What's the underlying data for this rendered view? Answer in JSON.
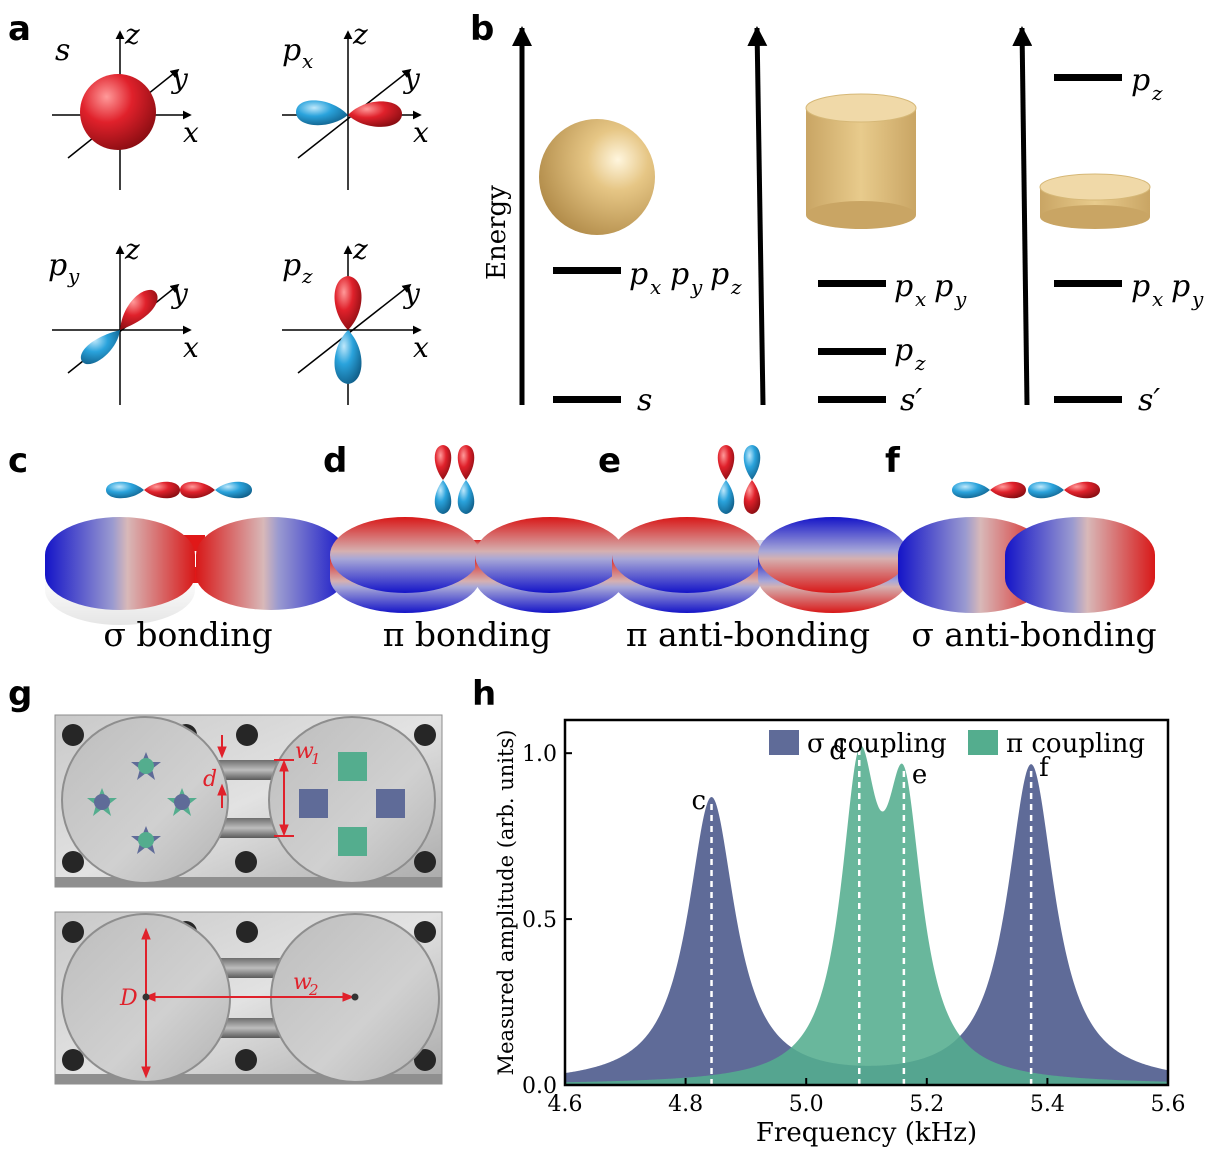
{
  "panels": {
    "a": {
      "letter": "a",
      "orbitals": [
        {
          "label": "s",
          "sub": ""
        },
        {
          "label": "p",
          "sub": "x"
        },
        {
          "label": "p",
          "sub": "y"
        },
        {
          "label": "p",
          "sub": "z"
        }
      ],
      "axis_labels": {
        "x": "x",
        "y": "y",
        "z": "z"
      }
    },
    "b": {
      "letter": "b",
      "energy_label": "Energy",
      "columns": [
        {
          "shape": "sphere",
          "levels": [
            {
              "text": "p",
              "subs": "x y z"
            },
            {
              "text": "s"
            }
          ]
        },
        {
          "shape": "tall-cylinder",
          "levels": [
            {
              "text": "p",
              "subs": "x y"
            },
            {
              "text": "p",
              "subs": "z"
            },
            {
              "text": "s′"
            }
          ]
        },
        {
          "shape": "flat-cylinder",
          "levels": [
            {
              "text": "p",
              "subs": "z"
            },
            {
              "text": "p",
              "subs": "x y"
            },
            {
              "text": "s′"
            }
          ]
        }
      ]
    },
    "c": {
      "letter": "c",
      "caption": "σ bonding"
    },
    "d": {
      "letter": "d",
      "caption": "π bonding"
    },
    "e": {
      "letter": "e",
      "caption": "π anti-bonding"
    },
    "f": {
      "letter": "f",
      "caption": "σ anti-bonding"
    },
    "g": {
      "letter": "g",
      "labels": {
        "d": "d",
        "w1": "w",
        "w1_sub": "1",
        "D": "D",
        "w2": "w",
        "w2_sub": "2"
      }
    },
    "h": {
      "letter": "h"
    }
  },
  "colors": {
    "red": "#e0212b",
    "blue": "#2aa3dc",
    "sigma": "#5f6b98",
    "pi": "#54ad8e",
    "gold": "#e3c27f"
  },
  "chart_data": {
    "type": "area",
    "xlabel": "Frequency (kHz)",
    "ylabel": "Measured amplitude (arb. units)",
    "xlim": [
      4.6,
      5.6
    ],
    "ylim": [
      0.0,
      1.1
    ],
    "xticks": [
      4.6,
      4.8,
      5.0,
      5.2,
      5.4,
      5.6
    ],
    "xtick_labels": [
      "4.6",
      "4.8",
      "5.0",
      "5.2",
      "5.4",
      "5.6"
    ],
    "yticks": [
      0.0,
      0.5,
      1.0
    ],
    "ytick_labels": [
      "0.0",
      "0.5",
      "1.0"
    ],
    "legend_position": "top-right",
    "series": [
      {
        "name": "σ coupling",
        "color": "#5f6b98",
        "peaks": [
          {
            "center": 4.843,
            "amp": 0.86,
            "hwhm": 0.048
          },
          {
            "center": 5.373,
            "amp": 0.96,
            "hwhm": 0.048
          }
        ]
      },
      {
        "name": "π coupling",
        "color": "#54ad8e",
        "peaks": [
          {
            "center": 5.088,
            "amp": 0.86,
            "hwhm": 0.037
          },
          {
            "center": 5.162,
            "amp": 0.79,
            "hwhm": 0.037
          }
        ]
      }
    ],
    "annotations": [
      {
        "label": "c",
        "x": 4.843
      },
      {
        "label": "d",
        "x": 5.088
      },
      {
        "label": "e",
        "x": 5.162
      },
      {
        "label": "f",
        "x": 5.373
      }
    ]
  }
}
